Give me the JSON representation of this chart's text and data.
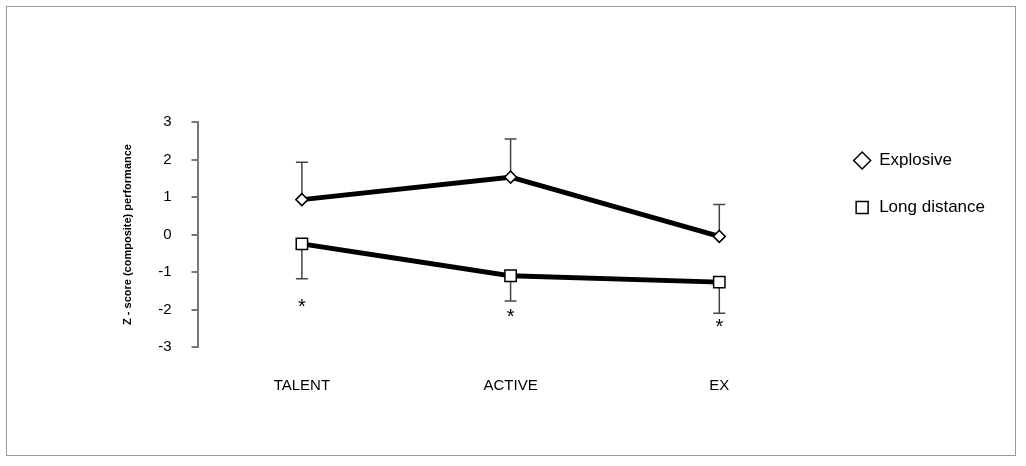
{
  "chart_data": {
    "type": "line",
    "ylabel": "Z - score (composite) performance",
    "categories": [
      "TALENT",
      "ACTIVE",
      "EX"
    ],
    "series": [
      {
        "name": "Explosive",
        "color": "#000000",
        "marker": "diamond",
        "values": [
          0.93,
          1.53,
          -0.05
        ],
        "errors": [
          [
            0.93,
            1.93
          ],
          [
            1.53,
            2.55
          ],
          [
            -0.05,
            0.8
          ]
        ]
      },
      {
        "name": "Long distance",
        "color": "#000000",
        "marker": "square",
        "values": [
          -0.25,
          -1.1,
          -1.27
        ],
        "errors": [
          [
            -1.18,
            -0.25
          ],
          [
            -1.77,
            -1.1
          ],
          [
            -2.1,
            -1.27
          ]
        ]
      }
    ],
    "ylim": [
      -3,
      3
    ],
    "yticks": [
      -3,
      -2,
      -1,
      0,
      1,
      2,
      3
    ],
    "grid": false,
    "legend": "top right",
    "annotations": [
      "*",
      "*",
      "*"
    ]
  }
}
